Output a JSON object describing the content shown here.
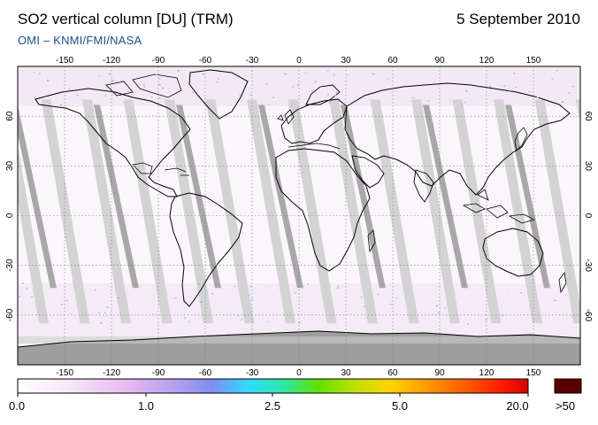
{
  "title": "SO2 vertical column [DU] (TRM)",
  "date": "5 September 2010",
  "subtitle": "OMI  –  KNMI/FMI/NASA",
  "map": {
    "lon_ticks": [
      -150,
      -120,
      -90,
      -60,
      -30,
      0,
      30,
      60,
      90,
      120,
      150
    ],
    "lon_labels": [
      "-150",
      "-120",
      "-90",
      "-60",
      "-30",
      "0",
      "30",
      "60",
      "90",
      "120",
      "150"
    ],
    "lat_ticks": [
      60,
      30,
      0,
      -30,
      -60
    ],
    "lat_labels": [
      "60",
      "30",
      "0",
      "-30",
      "-60"
    ],
    "lon_range": [
      -180,
      180
    ],
    "lat_range": [
      -90,
      90
    ]
  },
  "colorbar": {
    "labels": [
      "0.0",
      "1.0",
      "2.5",
      "5.0",
      "20.0"
    ],
    "overflow_label": ">50",
    "overflow_color": "#5a0000"
  }
}
